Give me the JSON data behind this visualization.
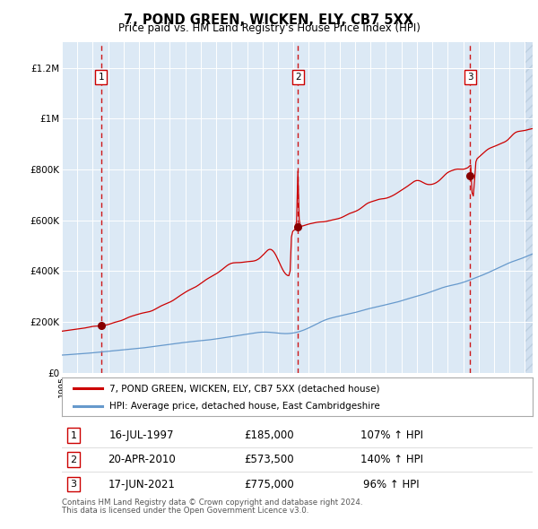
{
  "title": "7, POND GREEN, WICKEN, ELY, CB7 5XX",
  "subtitle": "Price paid vs. HM Land Registry's House Price Index (HPI)",
  "title_fontsize": 10.5,
  "subtitle_fontsize": 8.5,
  "background_color": "#dce9f5",
  "red_line_color": "#cc0000",
  "blue_line_color": "#6699cc",
  "ylim": [
    0,
    1300000
  ],
  "xlim_start": 1995.0,
  "xlim_end": 2025.5,
  "transactions": [
    {
      "num": 1,
      "date": "16-JUL-1997",
      "year": 1997.54,
      "price": 185000,
      "pct": "107%",
      "dir": "↑"
    },
    {
      "num": 2,
      "date": "20-APR-2010",
      "year": 2010.3,
      "price": 573500,
      "pct": "140%",
      "dir": "↑"
    },
    {
      "num": 3,
      "date": "17-JUN-2021",
      "year": 2021.46,
      "price": 775000,
      "pct": "96%",
      "dir": "↑"
    }
  ],
  "legend_line1": "7, POND GREEN, WICKEN, ELY, CB7 5XX (detached house)",
  "legend_line2": "HPI: Average price, detached house, East Cambridgeshire",
  "footer1": "Contains HM Land Registry data © Crown copyright and database right 2024.",
  "footer2": "This data is licensed under the Open Government Licence v3.0.",
  "yticks": [
    0,
    200000,
    400000,
    600000,
    800000,
    1000000,
    1200000
  ],
  "ytick_labels": [
    "£0",
    "£200K",
    "£400K",
    "£600K",
    "£800K",
    "£1M",
    "£1.2M"
  ]
}
